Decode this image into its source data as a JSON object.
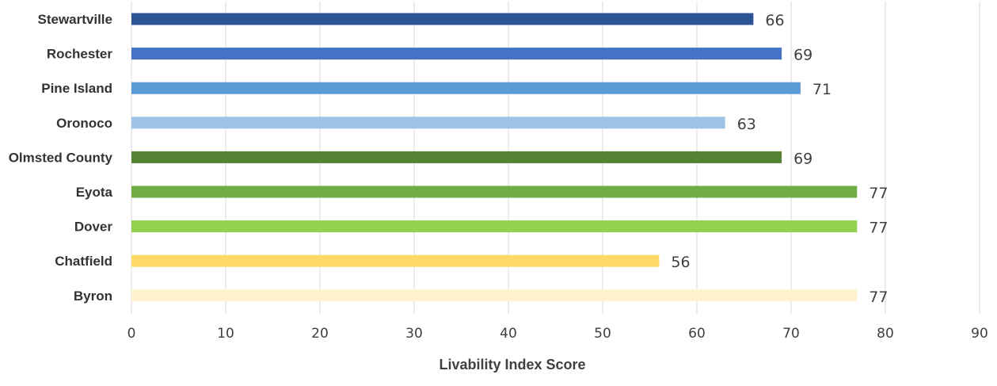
{
  "chart_data": {
    "type": "bar",
    "orientation": "horizontal",
    "categories": [
      "Stewartville",
      "Rochester",
      "Pine Island",
      "Oronoco",
      "Olmsted County",
      "Eyota",
      "Dover",
      "Chatfield",
      "Byron"
    ],
    "values": [
      66,
      69,
      71,
      63,
      69,
      77,
      77,
      56,
      77
    ],
    "bar_colors": [
      "#2f5496",
      "#4472c4",
      "#5b9bd5",
      "#9dc3e6",
      "#548235",
      "#70ad47",
      "#92d050",
      "#ffd966",
      "#fff2cc"
    ],
    "title": "",
    "xlabel": "Livability Index Score",
    "ylabel": "",
    "xlim": [
      0,
      90
    ],
    "xticks": [
      0,
      10,
      20,
      30,
      40,
      50,
      60,
      70,
      80,
      90
    ],
    "grid": "vertical",
    "legend": "none",
    "data_labels": true
  }
}
